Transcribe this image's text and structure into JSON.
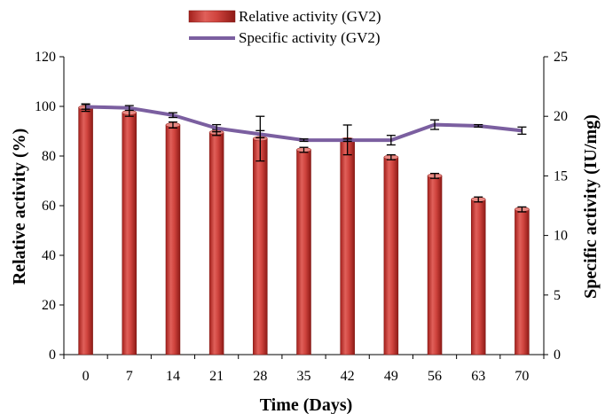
{
  "chart_data": {
    "type": "bar",
    "categories": [
      "0",
      "7",
      "14",
      "21",
      "28",
      "35",
      "42",
      "49",
      "56",
      "63",
      "70"
    ],
    "xlabel": "Time (Days)",
    "ylabel": "Relative activity (%)",
    "y2label": "Specific activity (IU/mg)",
    "ylim": [
      0,
      120
    ],
    "y2lim": [
      0,
      25
    ],
    "yticks": [
      "0",
      "20",
      "40",
      "60",
      "80",
      "100",
      "120"
    ],
    "y2ticks": [
      "0",
      "5",
      "10",
      "15",
      "20",
      "25"
    ],
    "legend_position": "top-center",
    "series": [
      {
        "name": "Relative activity (GV2)",
        "type": "bar",
        "axis": "left",
        "color": "#c0302b",
        "values": [
          99.5,
          97.5,
          92.5,
          89.5,
          87,
          82.5,
          86.5,
          79.5,
          72,
          62.5,
          58.5
        ],
        "errors": [
          1.5,
          1.5,
          1.2,
          1.2,
          9,
          1,
          6,
          1,
          1,
          1,
          1
        ]
      },
      {
        "name": "Specific activity (GV2)",
        "type": "line",
        "axis": "right",
        "color": "#7b5fa0",
        "values": [
          20.8,
          20.7,
          20.1,
          19.0,
          18.5,
          18.0,
          18.0,
          18.0,
          19.3,
          19.2,
          18.8
        ],
        "errors": [
          0.2,
          0.2,
          0.2,
          0.3,
          0.3,
          0.1,
          0.1,
          0.4,
          0.4,
          0.1,
          0.3
        ]
      }
    ]
  }
}
